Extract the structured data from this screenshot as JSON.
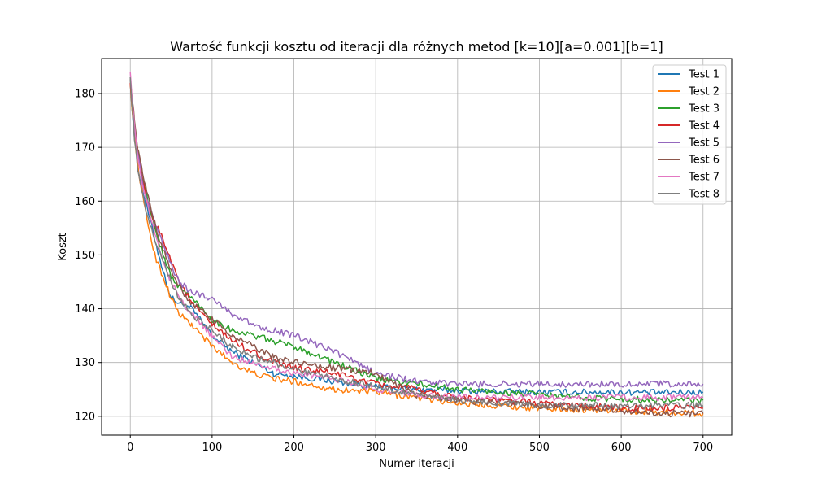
{
  "chart_data": {
    "type": "line",
    "title": "Wartość funkcji kosztu od iteracji dla różnych metod [k=10][a=0.001][b=1]",
    "xlabel": "Numer iteracji",
    "ylabel": "Koszt",
    "xlim": [
      -35,
      735
    ],
    "ylim": [
      116.5,
      186.5
    ],
    "xticks": [
      0,
      100,
      200,
      300,
      400,
      500,
      600,
      700
    ],
    "yticks": [
      120,
      130,
      140,
      150,
      160,
      170,
      180
    ],
    "grid": true,
    "legend_position": "top-right",
    "x": [
      0,
      5,
      10,
      15,
      20,
      30,
      40,
      50,
      60,
      75,
      100,
      125,
      150,
      175,
      200,
      250,
      300,
      350,
      400,
      450,
      500,
      550,
      600,
      650,
      700
    ],
    "series": [
      {
        "name": "Test 1",
        "color": "#1f77b4",
        "values": [
          182,
          172,
          166,
          162,
          159,
          153,
          147,
          142,
          141,
          140,
          135,
          132,
          130,
          128,
          127.5,
          126.5,
          125.5,
          125,
          124.8,
          124.6,
          124.5,
          124.5,
          124.5,
          124.4,
          124.5
        ]
      },
      {
        "name": "Test 2",
        "color": "#ff7f0e",
        "values": [
          182,
          172,
          166,
          161,
          157,
          150,
          146,
          142,
          139,
          137,
          133,
          130,
          128,
          127,
          126.5,
          125,
          124.5,
          123.5,
          122.5,
          122,
          121.5,
          121.3,
          121,
          120.8,
          120.5
        ]
      },
      {
        "name": "Test 3",
        "color": "#2ca02c",
        "values": [
          183,
          174,
          168,
          164,
          161,
          155,
          150,
          146,
          144,
          142,
          138,
          136,
          135,
          134,
          133,
          130,
          127,
          126,
          125,
          124.5,
          124,
          123.5,
          123.2,
          123,
          123
        ]
      },
      {
        "name": "Test 4",
        "color": "#d62728",
        "values": [
          182,
          174,
          168,
          164,
          160,
          156,
          153,
          149,
          145,
          141,
          137,
          134,
          132,
          130,
          129,
          128,
          126,
          125,
          123.5,
          123,
          122.5,
          122,
          121.5,
          121.5,
          121.5
        ]
      },
      {
        "name": "Test 5",
        "color": "#9467bd",
        "values": [
          183,
          174,
          168,
          163,
          160,
          156,
          152,
          148,
          145,
          143,
          142,
          139,
          137,
          136,
          135,
          132,
          128,
          126.5,
          126,
          126,
          126,
          126,
          126,
          126,
          126
        ]
      },
      {
        "name": "Test 6",
        "color": "#8c564b",
        "values": [
          183,
          175,
          169,
          165,
          162,
          156,
          151,
          147,
          144,
          141,
          138,
          135,
          133,
          131,
          130,
          129,
          128,
          124,
          123,
          122.5,
          122,
          121.5,
          121,
          120.5,
          120.5
        ]
      },
      {
        "name": "Test 7",
        "color": "#e377c2",
        "values": [
          184,
          174,
          167,
          163,
          160,
          154,
          149,
          145,
          142,
          139,
          135,
          131,
          130,
          129,
          128,
          127,
          125,
          124,
          123.5,
          123.5,
          123.5,
          123.5,
          123.5,
          123.5,
          123.5
        ]
      },
      {
        "name": "Test 8",
        "color": "#7f7f7f",
        "values": [
          183,
          172,
          165,
          161,
          158,
          153,
          149,
          145,
          142,
          139,
          136,
          133,
          131,
          130,
          128.5,
          127,
          125.5,
          124,
          123,
          122.5,
          122,
          122,
          122,
          122,
          122
        ]
      }
    ]
  }
}
